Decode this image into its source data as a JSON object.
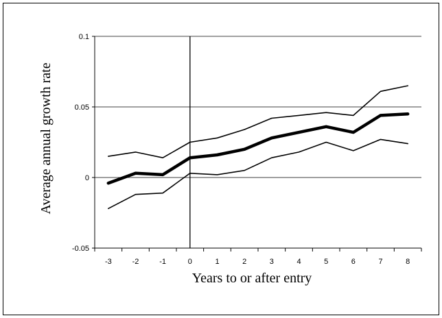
{
  "chart_data": {
    "type": "line",
    "title": "",
    "xlabel": "Years to or after entry",
    "ylabel": "Average annual growth rate",
    "x": [
      -3,
      -2,
      -1,
      0,
      1,
      2,
      3,
      4,
      5,
      6,
      7,
      8
    ],
    "x_tick_labels": [
      "-3",
      "-2",
      "-1",
      "0",
      "1",
      "2",
      "3",
      "4",
      "5",
      "6",
      "7",
      "8"
    ],
    "y_tick_values": [
      -0.05,
      0,
      0.05,
      0.1
    ],
    "y_tick_labels": [
      "-0.05",
      "0",
      "0.05",
      "0.1"
    ],
    "ylim": [
      -0.05,
      0.1
    ],
    "xlim": [
      -3.5,
      8.5
    ],
    "grid": "horizontal",
    "vertical_marker_x": 0,
    "series": [
      {
        "role": "upper-band",
        "values": [
          0.015,
          0.018,
          0.014,
          0.025,
          0.028,
          0.034,
          0.042,
          0.044,
          0.046,
          0.044,
          0.061,
          0.065
        ]
      },
      {
        "role": "estimate",
        "values": [
          -0.004,
          0.003,
          0.002,
          0.014,
          0.016,
          0.02,
          0.028,
          0.032,
          0.036,
          0.032,
          0.044,
          0.045
        ]
      },
      {
        "role": "lower-band",
        "values": [
          -0.022,
          -0.012,
          -0.011,
          0.003,
          0.002,
          0.005,
          0.014,
          0.018,
          0.025,
          0.019,
          0.027,
          0.024
        ]
      }
    ],
    "colors": {
      "line": "#000000",
      "grid": "#000000"
    }
  }
}
